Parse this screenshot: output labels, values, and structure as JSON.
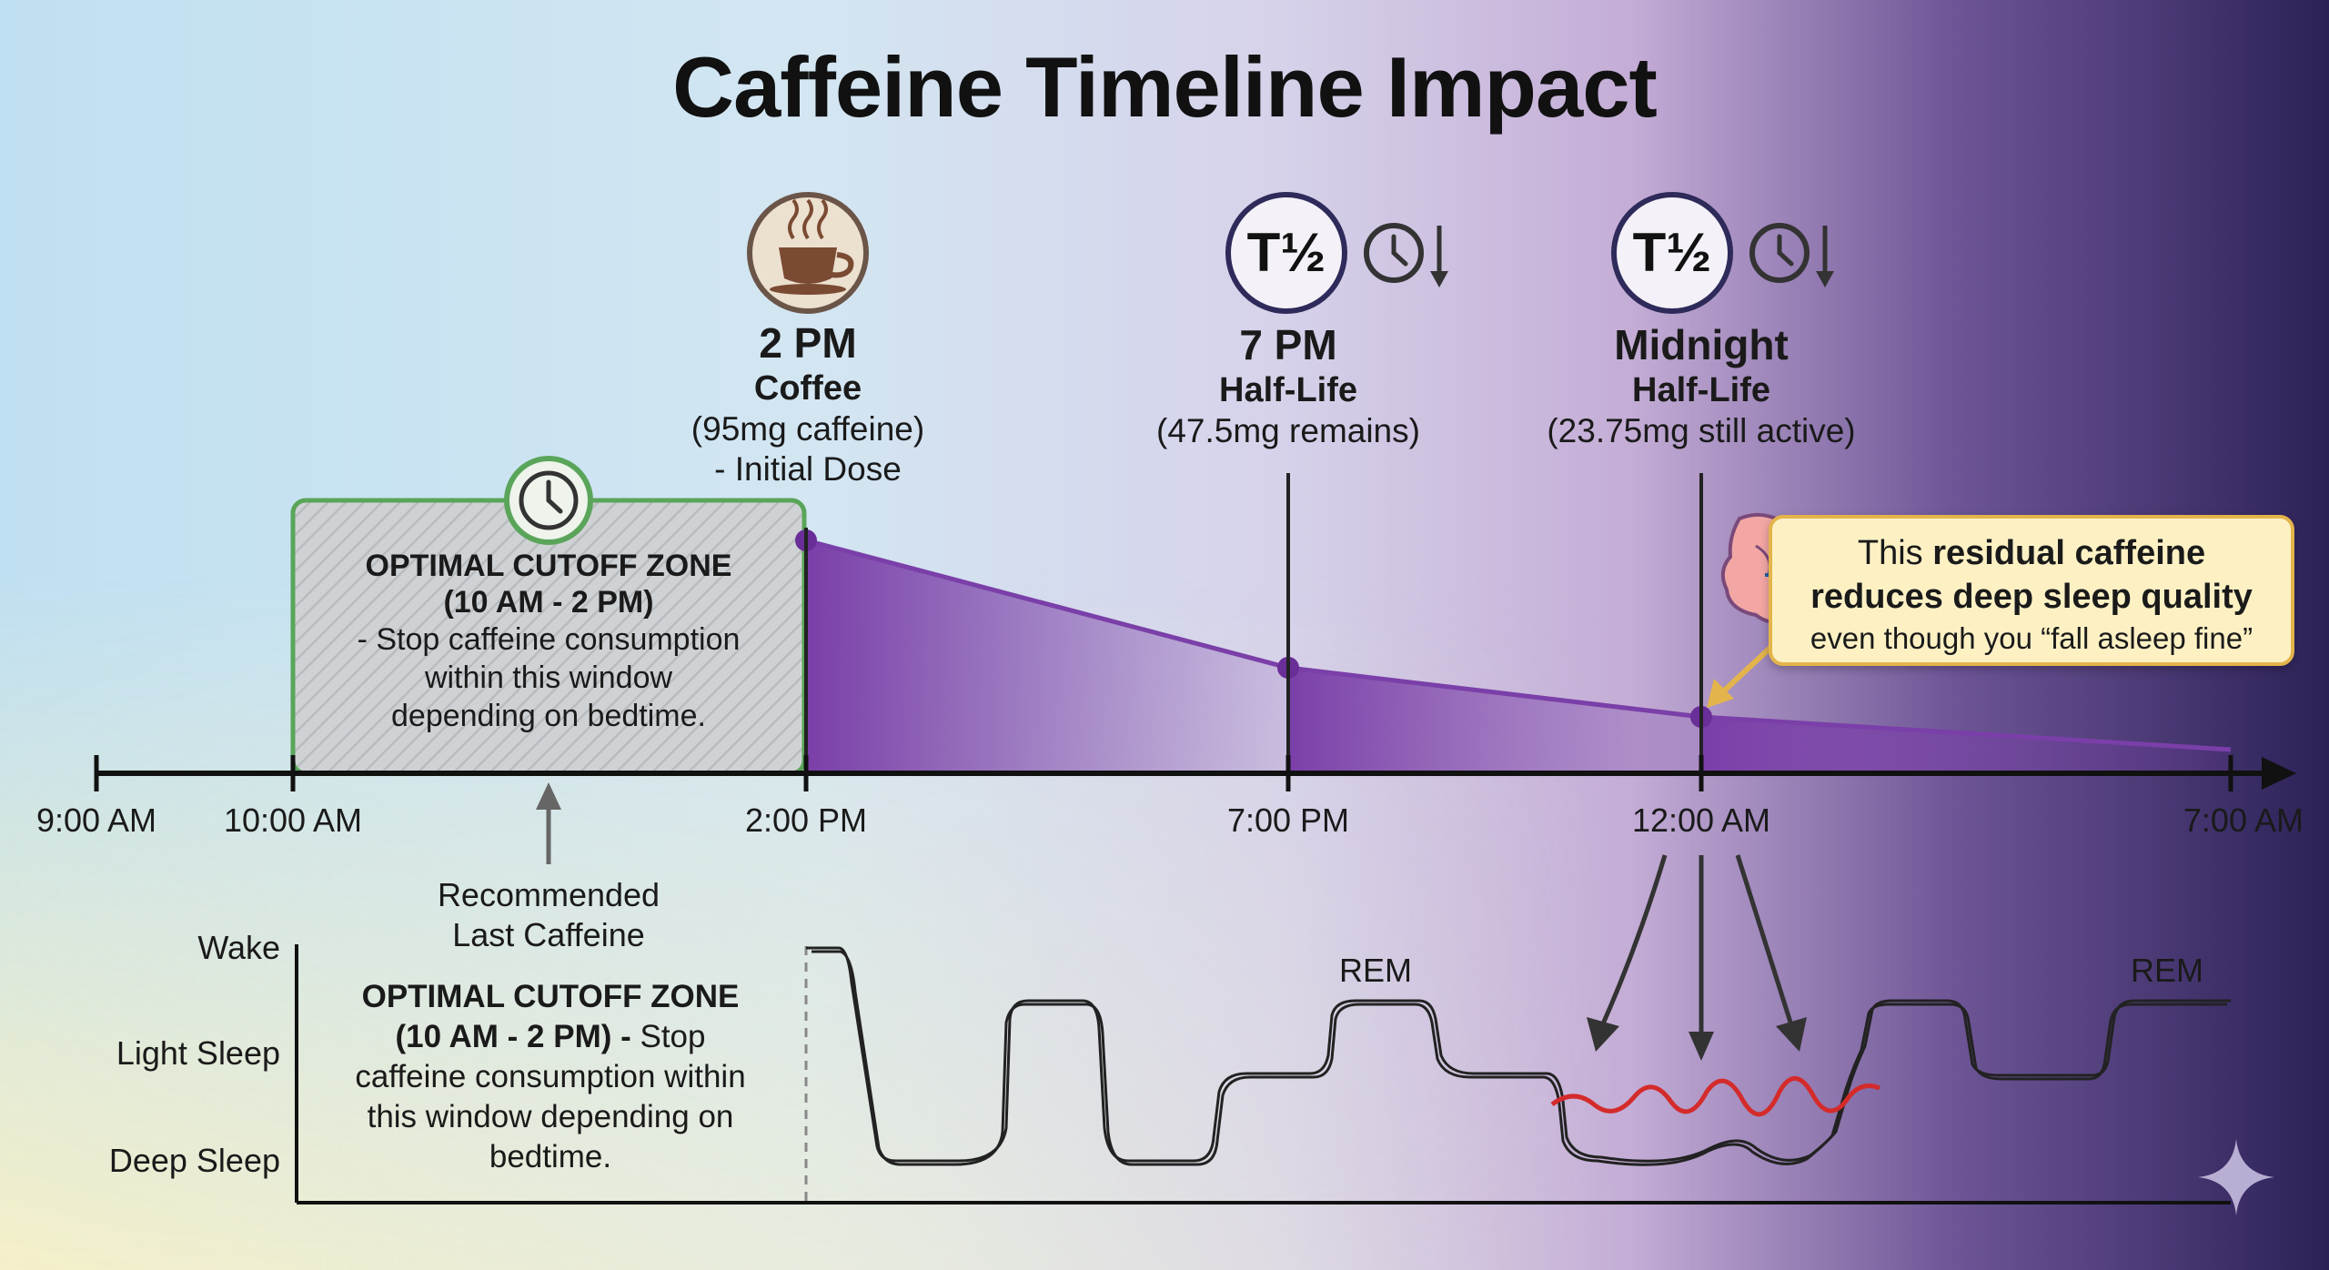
{
  "title": "Caffeine Timeline Impact",
  "colors": {
    "caffeine_fill": "#7a3fa8",
    "cutoff_zone_border": "#5aa55a",
    "disrupted_wave": "#d42b2b",
    "callout_bg": "#fdf1c4",
    "callout_border": "#e3b44b",
    "bg_left": "#bfe0f2",
    "bg_right": "#2c2157"
  },
  "events": {
    "coffee": {
      "icon": "coffee-cup-icon",
      "time": "2 PM",
      "name": "Coffee",
      "detail1": "(95mg caffeine)",
      "detail2": "- Initial Dose"
    },
    "half_life_1": {
      "icon": "half-life-icon",
      "badge": "T½",
      "time": "7 PM",
      "name": "Half-Life",
      "detail1": "(47.5mg remains)"
    },
    "half_life_2": {
      "icon": "half-life-icon",
      "badge": "T½",
      "time": "Midnight",
      "name": "Half-Life",
      "detail1": "(23.75mg still active)"
    }
  },
  "cutoff_zone": {
    "icon": "clock-icon",
    "title1": "OPTIMAL CUTOFF ZONE",
    "title2": "(10 AM - 2 PM)",
    "desc1": "- Stop caffeine consumption",
    "desc2": "within this window",
    "desc3": "depending on bedtime."
  },
  "timeline_ticks": [
    "9:00 AM",
    "10:00 AM",
    "2:00 PM",
    "7:00 PM",
    "12:00 AM",
    "7:00 AM"
  ],
  "recommended": {
    "line1": "Recommended",
    "line2": "Last Caffeine"
  },
  "lower_note": {
    "line1": "OPTIMAL CUTOFF ZONE",
    "line2_bold": "(10 AM - 2 PM) -",
    "line2_rest": " Stop",
    "line3": "caffeine consumption within",
    "line4": "this window depending on",
    "line5": "bedtime."
  },
  "sleep_stages": [
    "Wake",
    "Light Sleep",
    "Deep Sleep"
  ],
  "rem_labels": [
    "REM",
    "REM"
  ],
  "callout": {
    "pre": "This ",
    "bold1": "residual caffeine",
    "bold2": "reduces deep sleep quality",
    "line3": "even though you “fall asleep fine”"
  },
  "chart_data": {
    "type": "area",
    "x": [
      "2:00 PM",
      "7:00 PM",
      "12:00 AM",
      "7:00 AM"
    ],
    "series": [
      {
        "values": [
          95,
          47.5,
          23.75,
          0
        ]
      }
    ]
  }
}
